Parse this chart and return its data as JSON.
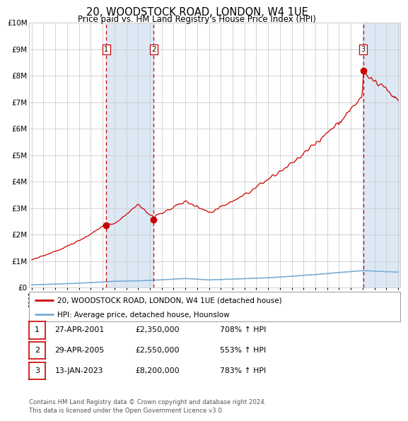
{
  "title": "20, WOODSTOCK ROAD, LONDON, W4 1UE",
  "subtitle": "Price paid vs. HM Land Registry's House Price Index (HPI)",
  "title_fontsize": 10.5,
  "subtitle_fontsize": 8.5,
  "x_start_year": 1995,
  "x_end_year": 2026,
  "ylim": [
    0,
    10000000
  ],
  "yticks": [
    0,
    1000000,
    2000000,
    3000000,
    4000000,
    5000000,
    6000000,
    7000000,
    8000000,
    9000000,
    10000000
  ],
  "ytick_labels": [
    "£0",
    "£1M",
    "£2M",
    "£3M",
    "£4M",
    "£5M",
    "£6M",
    "£7M",
    "£8M",
    "£9M",
    "£10M"
  ],
  "sale_color": "#cc0000",
  "hpi_color": "#7aadd4",
  "grid_color": "#cccccc",
  "bg_color": "#ffffff",
  "plot_bg_color": "#ffffff",
  "highlight_bg_color": "#dce9f5",
  "sales": [
    {
      "label": "1",
      "date_num": 2001.32,
      "price": 2350000,
      "date_str": "27-APR-2001",
      "hpi_pct": "708%",
      "arrow": "↑"
    },
    {
      "label": "2",
      "date_num": 2005.33,
      "price": 2550000,
      "date_str": "29-APR-2005",
      "hpi_pct": "553%",
      "arrow": "↑"
    },
    {
      "label": "3",
      "date_num": 2023.04,
      "price": 8200000,
      "date_str": "13-JAN-2023",
      "hpi_pct": "783%",
      "arrow": "↑"
    }
  ],
  "legend_line1": "20, WOODSTOCK ROAD, LONDON, W4 1UE (detached house)",
  "legend_line2": "HPI: Average price, detached house, Hounslow",
  "footnote": "Contains HM Land Registry data © Crown copyright and database right 2024.\nThis data is licensed under the Open Government Licence v3.0."
}
